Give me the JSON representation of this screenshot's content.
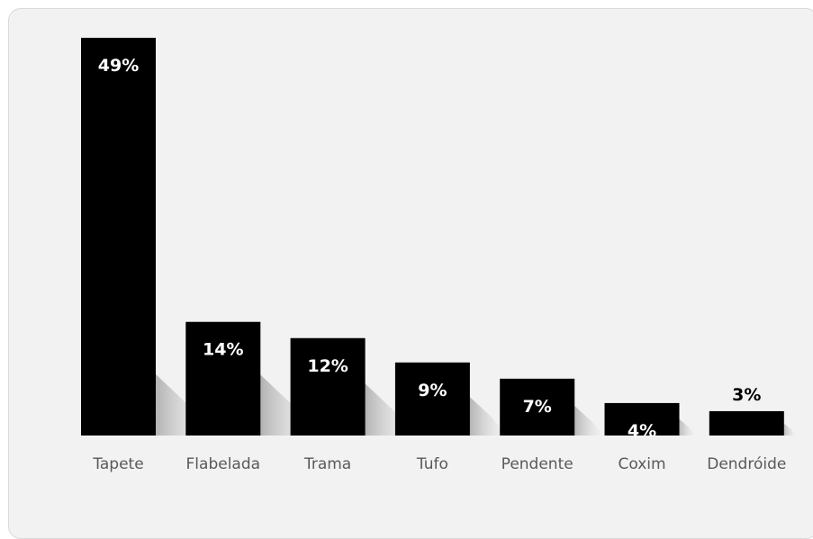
{
  "chart_data": {
    "type": "bar",
    "categories": [
      "Tapete",
      "Flabelada",
      "Trama",
      "Tufo",
      "Pendente",
      "Coxim",
      "Dendróide"
    ],
    "values": [
      49,
      14,
      12,
      9,
      7,
      4,
      3
    ],
    "data_labels": [
      "49%",
      "14%",
      "12%",
      "9%",
      "7%",
      "4%",
      "3%"
    ],
    "title": "",
    "xlabel": "",
    "ylabel": "",
    "ylim": [
      0,
      49
    ],
    "bar_color": "#000000",
    "background_color": "#f2f2f2",
    "grid": false,
    "legend": "none"
  }
}
